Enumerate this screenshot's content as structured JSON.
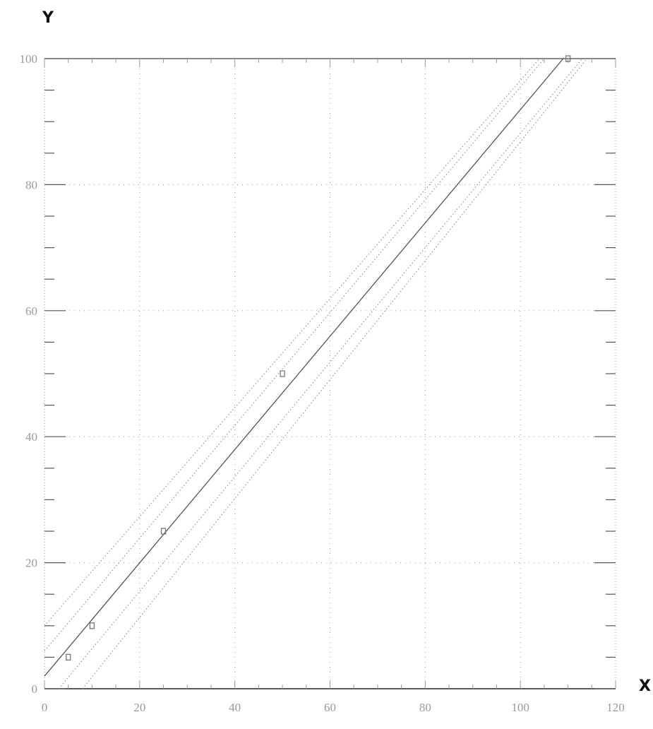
{
  "chart_data": {
    "type": "line",
    "xlabel": "X",
    "ylabel": "Y",
    "xlim": [
      0,
      120
    ],
    "ylim": [
      0,
      100
    ],
    "x_ticks": [
      0,
      20,
      40,
      60,
      80,
      100,
      120
    ],
    "y_ticks": [
      0,
      20,
      40,
      60,
      80,
      100
    ],
    "x_minor_step": 5,
    "y_minor_step": 5,
    "grid": "dotted",
    "series": [
      {
        "role": "fit",
        "style": "solid",
        "x": [
          0,
          109
        ],
        "y": [
          2,
          100
        ]
      },
      {
        "role": "band",
        "style": "dotted",
        "x": [
          0,
          105
        ],
        "y": [
          6,
          100
        ]
      },
      {
        "role": "band",
        "style": "dotted",
        "x": [
          3,
          113
        ],
        "y": [
          0,
          100
        ]
      },
      {
        "role": "band",
        "style": "dotted",
        "x": [
          0,
          104
        ],
        "y": [
          10,
          100
        ]
      },
      {
        "role": "band",
        "style": "dotted",
        "x": [
          8,
          114
        ],
        "y": [
          0,
          100
        ]
      },
      {
        "role": "points",
        "style": "marker",
        "x": [
          5,
          10,
          25,
          50,
          110
        ],
        "y": [
          5,
          10,
          25,
          50,
          100
        ]
      }
    ]
  }
}
